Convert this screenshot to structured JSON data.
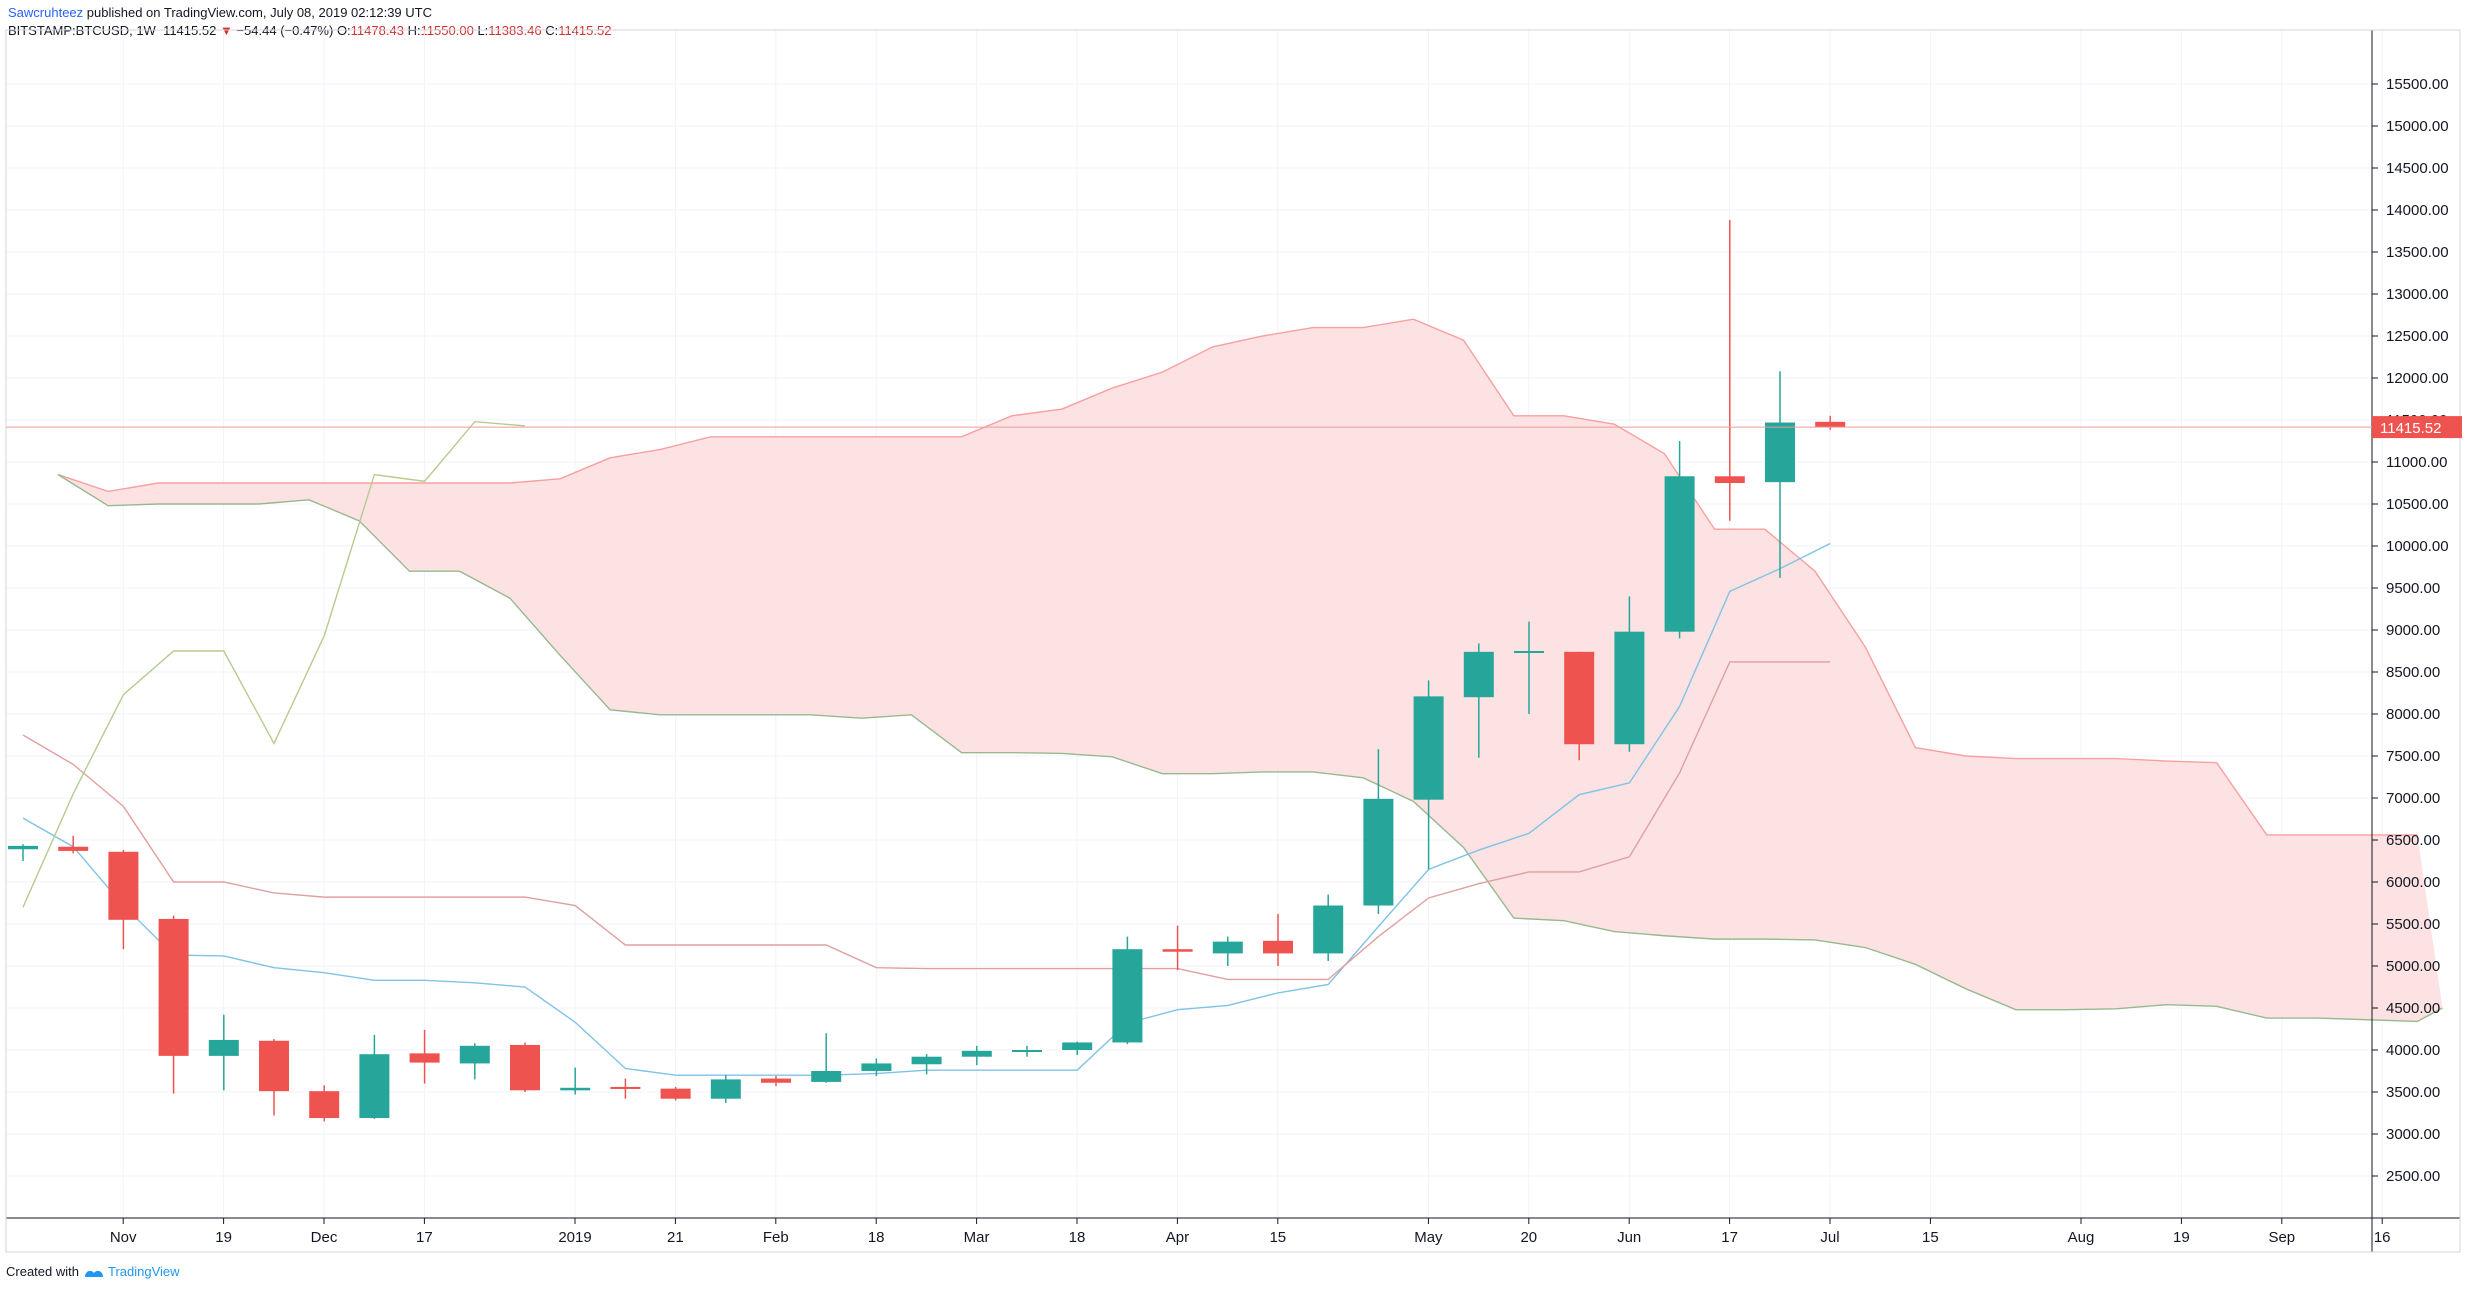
{
  "header": {
    "author": "Sawcruhteez",
    "published": "published on TradingView.com, July 08, 2019 02:12:39 UTC",
    "symbol": "BITSTAMP:BTCUSD, 1W",
    "last": "11415.52",
    "change_arrow": "▼",
    "change": "−54.44 (−0.47%)",
    "o_label": "O:",
    "o_value": "11478.43",
    "h_label": "H:",
    "h_value": "11550.00",
    "l_label": "L:",
    "l_value": "11383.46",
    "c_label": "C:",
    "c_value": "11415.52"
  },
  "footer": {
    "created_with": "Created with",
    "brand": "TradingView"
  },
  "colors": {
    "up": "#26a69a",
    "down": "#ef5350",
    "cloud": "#fce2e2",
    "span_a": "#f8a0a0",
    "span_b": "#98b98e",
    "tenkan": "#7fc3e6",
    "kijun": "#e0a0a0",
    "lagging": "#b5cc8f",
    "grid": "#f0f3fa",
    "axis": "#131722"
  },
  "chart_data": {
    "type": "candlestick",
    "instrument": "BITSTAMP:BTCUSD",
    "timeframe": "1W",
    "ylim": [
      1800,
      16000
    ],
    "y_ticks": [
      "2500.00",
      "3000.00",
      "3500.00",
      "4000.00",
      "4500.00",
      "5000.00",
      "5500.00",
      "6000.00",
      "6500.00",
      "7000.00",
      "7500.00",
      "8000.00",
      "8500.00",
      "9000.00",
      "9500.00",
      "10000.00",
      "10500.00",
      "11000.00",
      "11500.00",
      "12000.00",
      "12500.00",
      "13000.00",
      "13500.00",
      "14000.00",
      "14500.00",
      "15000.00",
      "15500.00"
    ],
    "x_ticks": [
      {
        "w": 1,
        "label": "Nov"
      },
      {
        "w": 3,
        "label": "19"
      },
      {
        "w": 5,
        "label": "Dec"
      },
      {
        "w": 7,
        "label": "17"
      },
      {
        "w": 10,
        "label": "2019"
      },
      {
        "w": 12,
        "label": "21"
      },
      {
        "w": 14,
        "label": "Feb"
      },
      {
        "w": 16,
        "label": "18"
      },
      {
        "w": 18,
        "label": "Mar"
      },
      {
        "w": 20,
        "label": "18"
      },
      {
        "w": 22,
        "label": "Apr"
      },
      {
        "w": 24,
        "label": "15"
      },
      {
        "w": 27,
        "label": "May"
      },
      {
        "w": 29,
        "label": "20"
      },
      {
        "w": 31,
        "label": "Jun"
      },
      {
        "w": 33,
        "label": "17"
      },
      {
        "w": 35,
        "label": "Jul"
      },
      {
        "w": 37,
        "label": "15"
      },
      {
        "w": 40,
        "label": "Aug"
      },
      {
        "w": 42,
        "label": "19"
      },
      {
        "w": 44,
        "label": "Sep"
      },
      {
        "w": 46,
        "label": "16"
      }
    ],
    "last_price": 11415.52,
    "last_price_label": "11415.52",
    "candles": [
      {
        "w": 0,
        "o": 6390,
        "h": 6450,
        "l": 6250,
        "c": 6430
      },
      {
        "w": 1,
        "o": 6420,
        "h": 6550,
        "l": 6340,
        "c": 6370
      },
      {
        "w": 2,
        "o": 6360,
        "h": 6380,
        "l": 5200,
        "c": 5550
      },
      {
        "w": 3,
        "o": 5560,
        "h": 5600,
        "l": 3480,
        "c": 3930
      },
      {
        "w": 4,
        "o": 3930,
        "h": 4420,
        "l": 3520,
        "c": 4120
      },
      {
        "w": 5,
        "o": 4110,
        "h": 4130,
        "l": 3220,
        "c": 3510
      },
      {
        "w": 6,
        "o": 3510,
        "h": 3580,
        "l": 3150,
        "c": 3190
      },
      {
        "w": 7,
        "o": 3190,
        "h": 4180,
        "l": 3180,
        "c": 3950
      },
      {
        "w": 8,
        "o": 3960,
        "h": 4240,
        "l": 3600,
        "c": 3850
      },
      {
        "w": 9,
        "o": 3840,
        "h": 4080,
        "l": 3650,
        "c": 4050
      },
      {
        "w": 10,
        "o": 4060,
        "h": 4090,
        "l": 3500,
        "c": 3520
      },
      {
        "w": 11,
        "o": 3520,
        "h": 3790,
        "l": 3470,
        "c": 3550
      },
      {
        "w": 12,
        "o": 3560,
        "h": 3660,
        "l": 3420,
        "c": 3540
      },
      {
        "w": 13,
        "o": 3540,
        "h": 3560,
        "l": 3400,
        "c": 3420
      },
      {
        "w": 14,
        "o": 3420,
        "h": 3700,
        "l": 3370,
        "c": 3650
      },
      {
        "w": 15,
        "o": 3660,
        "h": 3690,
        "l": 3570,
        "c": 3610
      },
      {
        "w": 16,
        "o": 3620,
        "h": 4200,
        "l": 3610,
        "c": 3750
      },
      {
        "w": 17,
        "o": 3750,
        "h": 3900,
        "l": 3690,
        "c": 3840
      },
      {
        "w": 18,
        "o": 3830,
        "h": 3950,
        "l": 3710,
        "c": 3920
      },
      {
        "w": 19,
        "o": 3920,
        "h": 4050,
        "l": 3820,
        "c": 3990
      },
      {
        "w": 20,
        "o": 3990,
        "h": 4050,
        "l": 3920,
        "c": 4000
      },
      {
        "w": 21,
        "o": 4000,
        "h": 4100,
        "l": 3940,
        "c": 4090
      },
      {
        "w": 22,
        "o": 4090,
        "h": 5350,
        "l": 4070,
        "c": 5200
      },
      {
        "w": 23,
        "o": 5200,
        "h": 5480,
        "l": 4950,
        "c": 5170
      },
      {
        "w": 24,
        "o": 5150,
        "h": 5350,
        "l": 5000,
        "c": 5290
      },
      {
        "w": 25,
        "o": 5300,
        "h": 5620,
        "l": 5000,
        "c": 5150
      },
      {
        "w": 26,
        "o": 5150,
        "h": 5850,
        "l": 5060,
        "c": 5720
      },
      {
        "w": 27,
        "o": 5720,
        "h": 7580,
        "l": 5620,
        "c": 6990
      },
      {
        "w": 28,
        "o": 6980,
        "h": 8400,
        "l": 6150,
        "c": 8210
      },
      {
        "w": 29,
        "o": 8200,
        "h": 8840,
        "l": 7480,
        "c": 8740
      },
      {
        "w": 30,
        "o": 8730,
        "h": 9100,
        "l": 8000,
        "c": 8750
      },
      {
        "w": 31,
        "o": 8740,
        "h": 8740,
        "l": 7450,
        "c": 7640
      },
      {
        "w": 32,
        "o": 7640,
        "h": 9400,
        "l": 7550,
        "c": 8980
      },
      {
        "w": 33,
        "o": 8980,
        "h": 11250,
        "l": 8900,
        "c": 10830
      },
      {
        "w": 34,
        "o": 10830,
        "h": 13880,
        "l": 10300,
        "c": 10750
      },
      {
        "w": 35,
        "o": 10760,
        "h": 12080,
        "l": 9620,
        "c": 11470
      },
      {
        "w": 36,
        "o": 11478.43,
        "h": 11550,
        "l": 11383.46,
        "c": 11415.52
      }
    ],
    "senkou_a": [
      [
        0,
        10850
      ],
      [
        1,
        10650
      ],
      [
        2,
        10750
      ],
      [
        3,
        10750
      ],
      [
        4,
        10750
      ],
      [
        5,
        10750
      ],
      [
        6,
        10750
      ],
      [
        7,
        10750
      ],
      [
        8,
        10750
      ],
      [
        9,
        10750
      ],
      [
        10,
        10800
      ],
      [
        11,
        11050
      ],
      [
        12,
        11150
      ],
      [
        13,
        11300
      ],
      [
        14,
        11300
      ],
      [
        15,
        11300
      ],
      [
        16,
        11300
      ],
      [
        17,
        11300
      ],
      [
        18,
        11300
      ],
      [
        19,
        11550
      ],
      [
        20,
        11630
      ],
      [
        21,
        11880
      ],
      [
        22,
        12070
      ],
      [
        23,
        12370
      ],
      [
        24,
        12500
      ],
      [
        25,
        12600
      ],
      [
        26,
        12600
      ],
      [
        27,
        12700
      ],
      [
        28,
        12450
      ],
      [
        29,
        11550
      ],
      [
        30,
        11550
      ],
      [
        31,
        11450
      ],
      [
        32,
        11100
      ],
      [
        33,
        10200
      ],
      [
        34,
        10200
      ],
      [
        35,
        9700
      ],
      [
        36,
        8800
      ],
      [
        37,
        7600
      ],
      [
        38,
        7500
      ],
      [
        39,
        7470
      ],
      [
        40,
        7470
      ],
      [
        41,
        7470
      ],
      [
        42,
        7440
      ],
      [
        43,
        7420
      ],
      [
        44,
        6560
      ],
      [
        45,
        6560
      ],
      [
        46,
        6560
      ],
      [
        47,
        6560
      ]
    ],
    "senkou_b": [
      [
        0,
        10850
      ],
      [
        1,
        10480
      ],
      [
        2,
        10500
      ],
      [
        3,
        10500
      ],
      [
        4,
        10500
      ],
      [
        5,
        10550
      ],
      [
        6,
        10300
      ],
      [
        7,
        9700
      ],
      [
        8,
        9700
      ],
      [
        9,
        9380
      ],
      [
        10,
        8700
      ],
      [
        11,
        8050
      ],
      [
        12,
        7990
      ],
      [
        13,
        7990
      ],
      [
        14,
        7990
      ],
      [
        15,
        7990
      ],
      [
        16,
        7950
      ],
      [
        17,
        7990
      ],
      [
        18,
        7540
      ],
      [
        19,
        7540
      ],
      [
        20,
        7530
      ],
      [
        21,
        7490
      ],
      [
        22,
        7290
      ],
      [
        23,
        7290
      ],
      [
        24,
        7310
      ],
      [
        25,
        7310
      ],
      [
        26,
        7240
      ],
      [
        27,
        6960
      ],
      [
        28,
        6410
      ],
      [
        29,
        5570
      ],
      [
        30,
        5540
      ],
      [
        31,
        5410
      ],
      [
        32,
        5360
      ],
      [
        33,
        5320
      ],
      [
        34,
        5320
      ],
      [
        35,
        5310
      ],
      [
        36,
        5220
      ],
      [
        37,
        5020
      ],
      [
        38,
        4730
      ],
      [
        39,
        4480
      ],
      [
        40,
        4480
      ],
      [
        41,
        4490
      ],
      [
        42,
        4540
      ],
      [
        43,
        4520
      ],
      [
        44,
        4380
      ],
      [
        45,
        4380
      ],
      [
        46,
        4360
      ],
      [
        47,
        4340
      ],
      [
        47.5,
        4500
      ]
    ],
    "tenkan": [
      [
        0,
        6760
      ],
      [
        1,
        6420
      ],
      [
        2,
        5720
      ],
      [
        3,
        5130
      ],
      [
        4,
        5120
      ],
      [
        5,
        4980
      ],
      [
        6,
        4920
      ],
      [
        7,
        4830
      ],
      [
        8,
        4830
      ],
      [
        9,
        4800
      ],
      [
        10,
        4750
      ],
      [
        11,
        4330
      ],
      [
        12,
        3780
      ],
      [
        13,
        3700
      ],
      [
        14,
        3700
      ],
      [
        15,
        3700
      ],
      [
        16,
        3700
      ],
      [
        17,
        3720
      ],
      [
        18,
        3760
      ],
      [
        19,
        3760
      ],
      [
        20,
        3760
      ],
      [
        21,
        3760
      ],
      [
        22,
        4320
      ],
      [
        23,
        4480
      ],
      [
        24,
        4530
      ],
      [
        25,
        4680
      ],
      [
        26,
        4780
      ],
      [
        27,
        5470
      ],
      [
        28,
        6150
      ],
      [
        29,
        6380
      ],
      [
        30,
        6580
      ],
      [
        31,
        7040
      ],
      [
        32,
        7180
      ],
      [
        33,
        8090
      ],
      [
        34,
        9460
      ],
      [
        35,
        9730
      ],
      [
        36,
        10030
      ]
    ],
    "kijun": [
      [
        0,
        7750
      ],
      [
        1,
        7400
      ],
      [
        2,
        6900
      ],
      [
        3,
        6000
      ],
      [
        4,
        6000
      ],
      [
        5,
        5870
      ],
      [
        6,
        5820
      ],
      [
        7,
        5820
      ],
      [
        8,
        5820
      ],
      [
        9,
        5820
      ],
      [
        10,
        5820
      ],
      [
        11,
        5720
      ],
      [
        12,
        5250
      ],
      [
        13,
        5250
      ],
      [
        14,
        5250
      ],
      [
        15,
        5250
      ],
      [
        16,
        5250
      ],
      [
        17,
        4980
      ],
      [
        18,
        4970
      ],
      [
        19,
        4970
      ],
      [
        20,
        4970
      ],
      [
        21,
        4970
      ],
      [
        22,
        4970
      ],
      [
        23,
        4970
      ],
      [
        24,
        4840
      ],
      [
        25,
        4840
      ],
      [
        26,
        4840
      ],
      [
        27,
        5350
      ],
      [
        28,
        5810
      ],
      [
        29,
        5980
      ],
      [
        30,
        6120
      ],
      [
        31,
        6120
      ],
      [
        32,
        6300
      ],
      [
        33,
        7300
      ],
      [
        34,
        8620
      ],
      [
        35,
        8620
      ],
      [
        36,
        8620
      ]
    ],
    "chikou": [
      [
        0,
        5700
      ],
      [
        1,
        7050
      ],
      [
        2,
        8230
      ],
      [
        3,
        8750
      ],
      [
        4,
        8750
      ],
      [
        5,
        7650
      ],
      [
        6,
        8930
      ],
      [
        7,
        10850
      ],
      [
        8,
        10770
      ],
      [
        9,
        11480
      ],
      [
        10,
        11430
      ]
    ]
  }
}
